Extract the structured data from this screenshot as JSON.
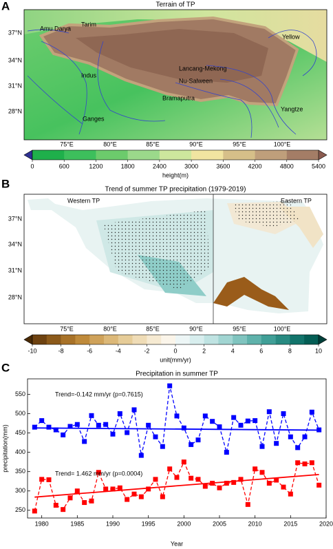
{
  "panel_labels": [
    "A",
    "B",
    "C"
  ],
  "maps": [
    {
      "title": "Terrain of TP",
      "lat_labels": [
        "37°N",
        "34°N",
        "31°N",
        "28°N"
      ],
      "lon_labels": [
        "75°E",
        "80°E",
        "85°E",
        "90°E",
        "95°E",
        "100°E"
      ],
      "places": [
        "Amu Darya",
        "Tarim",
        "Yellow",
        "Indus",
        "Lancang-Mekong",
        "Nu-Salween",
        "Bramaputra",
        "Ganges",
        "Yangtze"
      ],
      "colorbar": {
        "ticks": [
          0,
          600,
          1200,
          1800,
          2400,
          3000,
          3600,
          4200,
          4800,
          5400
        ],
        "label": "height(m)",
        "colors": [
          "#2e3192",
          "#1fb04b",
          "#3dbf5c",
          "#6ccb6c",
          "#9bd98b",
          "#cde79d",
          "#f1e4a1",
          "#d6bf89",
          "#bf9f7b",
          "#a47d66",
          "#8b5b50"
        ]
      }
    },
    {
      "title": "Trend of summer TP precipitation (1979-2019)",
      "lat_labels": [
        "37°N",
        "34°N",
        "31°N",
        "28°N"
      ],
      "lon_labels": [
        "75°E",
        "80°E",
        "85°E",
        "90°E",
        "95°E",
        "100°E"
      ],
      "places": [
        "Western TP",
        "Eastern TP"
      ],
      "colorbar": {
        "ticks": [
          -10,
          -8,
          -6,
          -4,
          -2,
          0,
          2,
          4,
          6,
          8,
          10
        ],
        "label": "unit(mm/yr)",
        "colors": [
          "#4a2a05",
          "#6e4210",
          "#8c5a1a",
          "#a87228",
          "#bf8a3a",
          "#cfa25a",
          "#dcb878",
          "#e6cc98",
          "#efdcb6",
          "#f6ead2",
          "#fbf5ea",
          "#edf6f6",
          "#d8eeee",
          "#bfe3e2",
          "#a1d5d2",
          "#80c4bf",
          "#5fb2ab",
          "#409f97",
          "#288a81",
          "#12746b",
          "#045e55",
          "#003f39"
        ]
      }
    }
  ],
  "chart_data": {
    "type": "line",
    "title": "Precipitation in summer TP",
    "xlabel": "Year",
    "ylabel": "precipitation(mm)",
    "x": [
      1979,
      1980,
      1981,
      1982,
      1983,
      1984,
      1985,
      1986,
      1987,
      1988,
      1989,
      1990,
      1991,
      1992,
      1993,
      1994,
      1995,
      1996,
      1997,
      1998,
      1999,
      2000,
      2001,
      2002,
      2003,
      2004,
      2005,
      2006,
      2007,
      2008,
      2009,
      2010,
      2011,
      2012,
      2013,
      2014,
      2015,
      2016,
      2017,
      2018,
      2019
    ],
    "series": [
      {
        "color": "#0000ff",
        "values": [
          465,
          482,
          465,
          458,
          445,
          467,
          472,
          428,
          495,
          470,
          472,
          447,
          500,
          451,
          510,
          392,
          470,
          440,
          415,
          572,
          494,
          463,
          420,
          432,
          494,
          480,
          466,
          400,
          490,
          470,
          481,
          482,
          415,
          505,
          423,
          500,
          440,
          412,
          440,
          504,
          458
        ]
      },
      {
        "color": "#ff0000",
        "values": [
          248,
          330,
          329,
          263,
          252,
          282,
          300,
          270,
          274,
          348,
          305,
          305,
          308,
          278,
          292,
          285,
          305,
          330,
          285,
          357,
          335,
          375,
          333,
          330,
          312,
          320,
          308,
          320,
          322,
          330,
          265,
          357,
          348,
          320,
          328,
          310,
          292,
          373,
          370,
          373,
          315
        ]
      }
    ],
    "trend_lines": [
      {
        "color": "#0000ff",
        "x": [
          1979,
          2019
        ],
        "values": [
          463,
          457.3
        ]
      },
      {
        "color": "#ff0000",
        "x": [
          1979,
          2019
        ],
        "values": [
          284,
          342.5
        ]
      }
    ],
    "annotations": [
      "Trend=-0.142 mm/yr (p=0.7615)",
      "Trend= 1.462 mm/yr (p=0.0004)"
    ],
    "xlim": [
      1978,
      2020
    ],
    "ylim": [
      230,
      590
    ],
    "xticks": [
      1980,
      1985,
      1990,
      1995,
      2000,
      2005,
      2010,
      2015,
      2020
    ],
    "yticks": [
      250,
      300,
      350,
      400,
      450,
      500,
      550
    ]
  }
}
